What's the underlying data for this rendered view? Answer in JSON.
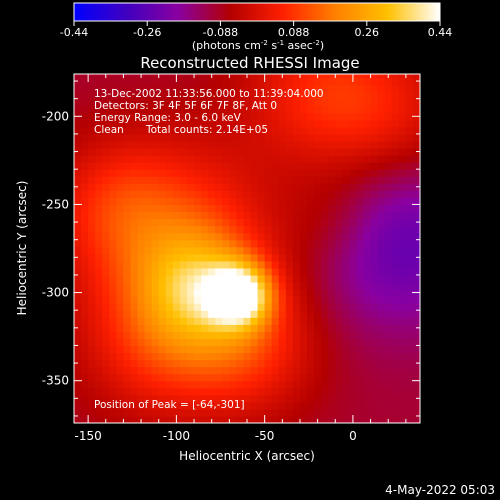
{
  "colorbar": {
    "tick_labels": [
      "-0.44",
      "-0.26",
      "-0.088",
      "0.088",
      "0.26",
      "0.44"
    ],
    "range": [
      -0.44,
      0.44
    ],
    "unit_label": "(photons cm",
    "unit_sup1": "-2",
    "unit_mid": " s",
    "unit_sup2": "-1",
    "unit_end": " asec",
    "unit_sup3": "-2",
    "unit_close": ")",
    "colormap": [
      "#0000ff",
      "#4000c0",
      "#8a00a0",
      "#b40000",
      "#ff2000",
      "#ff8000",
      "#ffc000",
      "#ffffff"
    ]
  },
  "chart_data": {
    "type": "heatmap",
    "title": "Reconstructed RHESSI Image",
    "xlabel": "Heliocentric X (arcsec)",
    "ylabel": "Heliocentric Y (arcsec)",
    "xlim": [
      -158,
      38
    ],
    "ylim": [
      -374,
      -176
    ],
    "x_ticks": [
      -150,
      -100,
      -50,
      0
    ],
    "y_ticks": [
      -200,
      -250,
      -300,
      -350
    ],
    "annotations": {
      "line1": "13-Dec-2002 11:33:56.000 to 11:39:04.000",
      "line2": "Detectors: 3F 4F 5F 6F 7F 8F, Att 0",
      "line3": "Energy Range: 3.0 - 6.0 keV",
      "line4_a": "Clean",
      "line4_b": "Total counts: 2.14E+05",
      "peak": "Position of Peak = [-64,-301]"
    },
    "peak": [
      -64,
      -301
    ],
    "blobs": [
      {
        "x": -64,
        "y": -301,
        "amp": 0.4,
        "sigma": 12
      },
      {
        "x": -88,
        "y": -296,
        "amp": 0.22,
        "sigma": 22
      },
      {
        "x": -100,
        "y": -270,
        "amp": 0.2,
        "sigma": 40
      },
      {
        "x": -60,
        "y": -330,
        "amp": 0.16,
        "sigma": 28
      },
      {
        "x": -110,
        "y": -330,
        "amp": 0.14,
        "sigma": 30
      },
      {
        "x": -20,
        "y": -185,
        "amp": 0.14,
        "sigma": 30
      },
      {
        "x": 20,
        "y": -200,
        "amp": 0.12,
        "sigma": 30
      },
      {
        "x": -135,
        "y": -250,
        "amp": 0.1,
        "sigma": 25
      },
      {
        "x": -10,
        "y": -260,
        "amp": 0.06,
        "sigma": 20
      }
    ],
    "background": -0.1,
    "low_region": {
      "x": 25,
      "y": -270,
      "amp": -0.16,
      "sigma": 35
    }
  },
  "footer": {
    "timestamp": "4-May-2022 05:03"
  }
}
